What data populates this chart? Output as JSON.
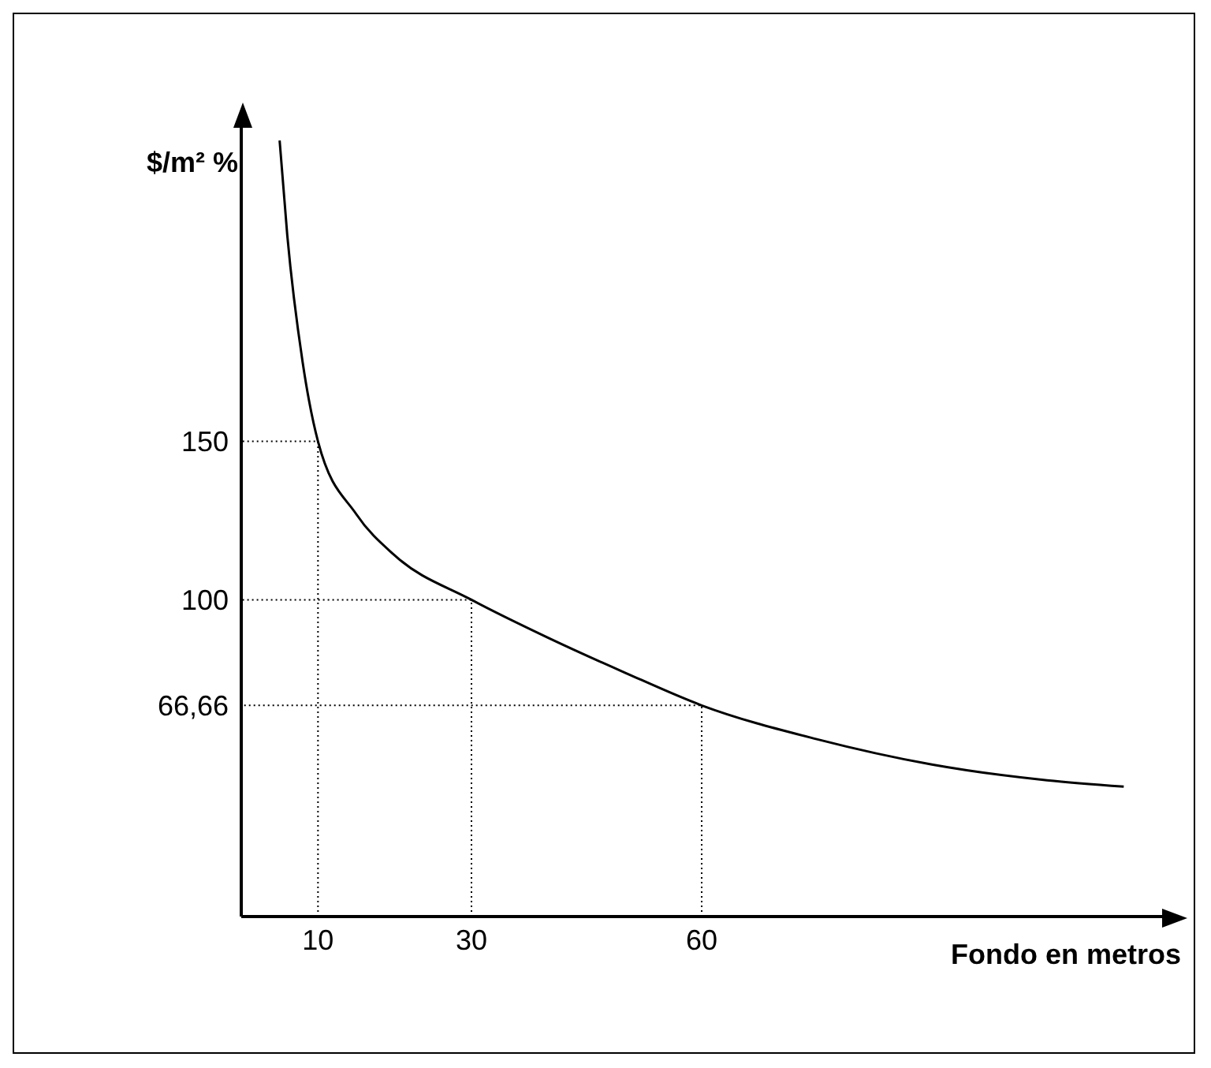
{
  "chart_data": {
    "type": "line",
    "xlabel": "Fondo en metros",
    "ylabel": "$/m² %",
    "series": [
      {
        "color": "#000000",
        "line_style": "solid",
        "x": [
          5,
          6,
          8,
          10,
          15,
          20,
          30,
          40,
          50,
          60,
          75,
          90,
          105,
          115
        ],
        "values": [
          245,
          215,
          175,
          150,
          127,
          114,
          100,
          88,
          77,
          66.66,
          56,
          48,
          43,
          41
        ]
      },
      {
        "color": "#000000",
        "line_style": "dotted",
        "x": [
          10,
          10,
          0
        ],
        "values": [
          0,
          150,
          150
        ]
      },
      {
        "color": "#000000",
        "line_style": "dotted",
        "x": [
          30,
          30,
          0
        ],
        "values": [
          0,
          100,
          100
        ]
      },
      {
        "color": "#000000",
        "line_style": "dotted",
        "x": [
          60,
          60,
          0
        ],
        "values": [
          0,
          66.66,
          66.66
        ]
      }
    ],
    "xlim": [
      0,
      120
    ],
    "ylim": [
      0,
      250
    ],
    "xticks": [
      10,
      30,
      60
    ],
    "yticks": [
      {
        "value": 66.66,
        "label": "66,66"
      },
      100,
      150
    ],
    "marker": "none"
  }
}
